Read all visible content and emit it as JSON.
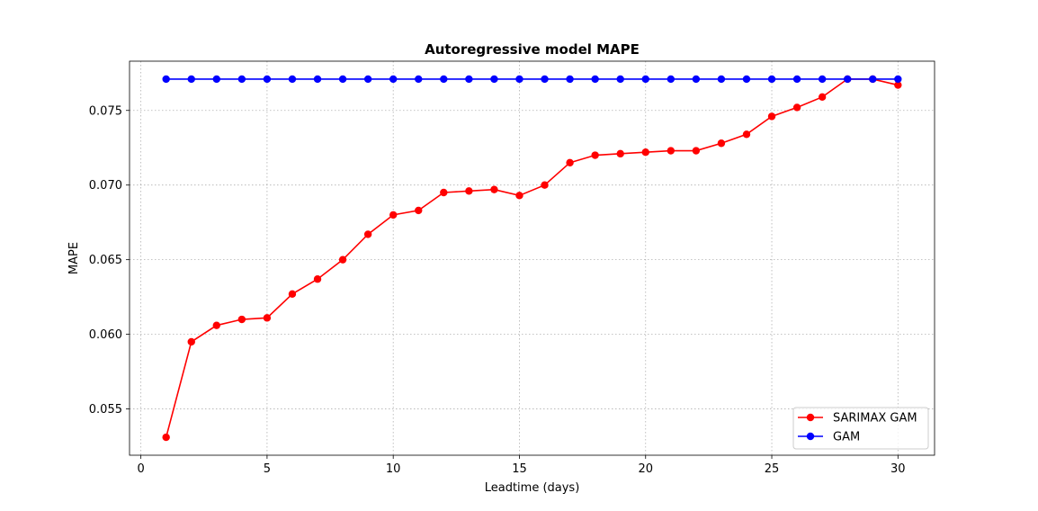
{
  "chart_data": {
    "type": "line",
    "title": "Autoregressive model MAPE",
    "xlabel": "Leadtime (days)",
    "ylabel": "MAPE",
    "xlim": [
      -0.45,
      31.45
    ],
    "ylim": [
      0.0519,
      0.0783
    ],
    "xticks": [
      0,
      5,
      10,
      15,
      20,
      25,
      30
    ],
    "yticks": [
      0.055,
      0.06,
      0.065,
      0.07,
      0.075
    ],
    "xtick_labels": [
      "0",
      "5",
      "10",
      "15",
      "20",
      "25",
      "30"
    ],
    "ytick_labels": [
      "0.055",
      "0.060",
      "0.065",
      "0.070",
      "0.075"
    ],
    "grid": true,
    "legend_position": "lower-right",
    "x": [
      1,
      2,
      3,
      4,
      5,
      6,
      7,
      8,
      9,
      10,
      11,
      12,
      13,
      14,
      15,
      16,
      17,
      18,
      19,
      20,
      21,
      22,
      23,
      24,
      25,
      26,
      27,
      28,
      29,
      30
    ],
    "series": [
      {
        "name": "SARIMAX GAM",
        "color": "#ff0000",
        "marker": "circle",
        "values": [
          0.0531,
          0.0595,
          0.0606,
          0.061,
          0.0611,
          0.0627,
          0.0637,
          0.065,
          0.0667,
          0.068,
          0.0683,
          0.0695,
          0.0696,
          0.0697,
          0.0693,
          0.07,
          0.0715,
          0.072,
          0.0721,
          0.0722,
          0.0723,
          0.0723,
          0.0728,
          0.0734,
          0.0746,
          0.0752,
          0.0759,
          0.0771,
          0.0771,
          0.0767
        ]
      },
      {
        "name": "GAM",
        "color": "#0000ff",
        "marker": "circle",
        "values": [
          0.0771,
          0.0771,
          0.0771,
          0.0771,
          0.0771,
          0.0771,
          0.0771,
          0.0771,
          0.0771,
          0.0771,
          0.0771,
          0.0771,
          0.0771,
          0.0771,
          0.0771,
          0.0771,
          0.0771,
          0.0771,
          0.0771,
          0.0771,
          0.0771,
          0.0771,
          0.0771,
          0.0771,
          0.0771,
          0.0771,
          0.0771,
          0.0771,
          0.0771,
          0.0771
        ]
      }
    ]
  }
}
